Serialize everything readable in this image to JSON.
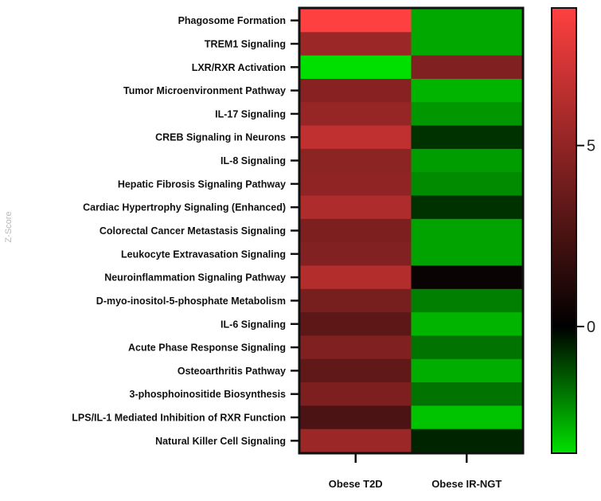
{
  "chart_data": {
    "type": "heatmap",
    "columns": [
      "Obese T2D",
      "Obese IR-NGT"
    ],
    "rows": [
      "Phagosome Formation",
      "TREM1 Signaling",
      "LXR/RXR Activation",
      "Tumor Microenvironment Pathway",
      "IL-17 Signaling",
      "CREB Signaling in Neurons",
      "IL-8 Signaling",
      "Hepatic Fibrosis Signaling Pathway",
      "Cardiac Hypertrophy Signaling (Enhanced)",
      "Colorectal Cancer Metastasis Signaling",
      "Leukocyte Extravasation Signaling",
      "Neuroinflammation Signaling Pathway",
      "D-myo-inositol-5-phosphate Metabolism",
      "IL-6 Signaling",
      "Acute Phase Response Signaling",
      "Osteoarthritis Pathway",
      "3-phosphoinositide Biosynthesis",
      "LPS/IL-1 Mediated Inhibition of RXR Function",
      "Natural Killer Cell Signaling"
    ],
    "values": [
      [
        8.8,
        -2.5
      ],
      [
        4.9,
        -2.5
      ],
      [
        -3.5,
        3.9
      ],
      [
        4.2,
        -2.7
      ],
      [
        4.7,
        -2.2
      ],
      [
        6.3,
        -0.6
      ],
      [
        4.4,
        -2.3
      ],
      [
        4.5,
        -2.0
      ],
      [
        5.6,
        -0.6
      ],
      [
        3.8,
        -2.4
      ],
      [
        4.0,
        -2.4
      ],
      [
        5.8,
        0.2
      ],
      [
        3.6,
        -1.8
      ],
      [
        2.7,
        -2.7
      ],
      [
        3.9,
        -1.6
      ],
      [
        2.8,
        -2.6
      ],
      [
        3.8,
        -1.6
      ],
      [
        2.1,
        -3.0
      ],
      [
        4.9,
        -0.4
      ]
    ],
    "colorbar": {
      "ticks": [
        5,
        0
      ],
      "min": -3.5,
      "max": 8.8,
      "colors": {
        "low": "#00e000",
        "mid": "#000000",
        "high": "#ff4040"
      }
    },
    "side_label": "Z-Score",
    "title": ""
  }
}
